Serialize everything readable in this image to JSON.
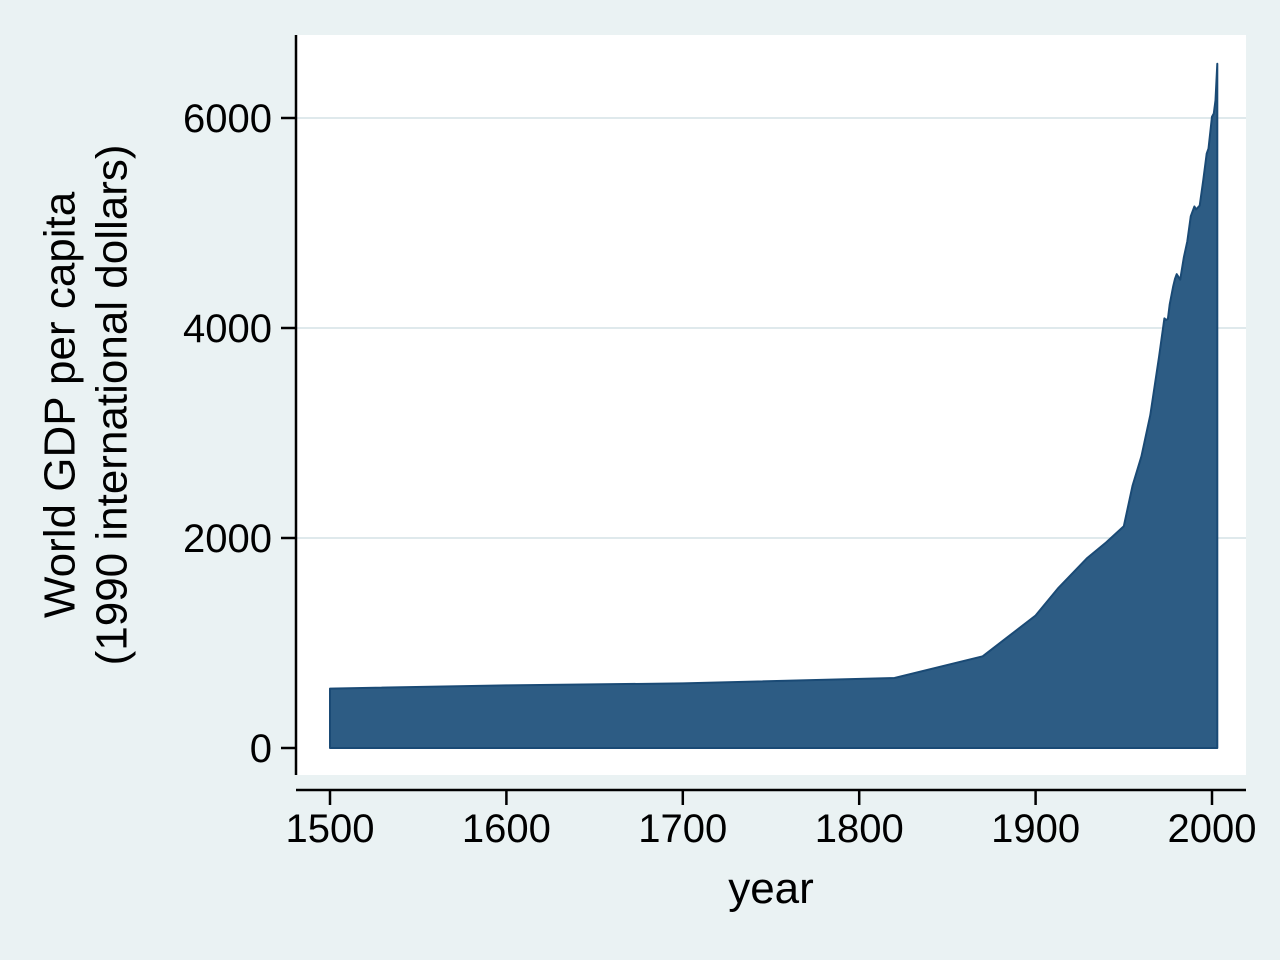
{
  "labels": {
    "y_line1": "World GDP per capita",
    "y_line2": "(1990 international dollars)",
    "x": "year"
  },
  "axes": {
    "x_ticks": [
      1500,
      1600,
      1700,
      1800,
      1900,
      2000
    ],
    "x_tick_labels": [
      "1500",
      "1600",
      "1700",
      "1800",
      "1900",
      "2000"
    ],
    "y_ticks": [
      0,
      2000,
      4000,
      6000
    ],
    "y_tick_labels": [
      "0",
      "2000",
      "4000",
      "6000"
    ]
  },
  "colors": {
    "background": "#eaf2f3",
    "plot_background": "#ffffff",
    "grid": "#dfe9ec",
    "area_fill": "#2d5c84",
    "area_stroke": "#1a4a75",
    "axis": "#000000",
    "text": "#000000"
  },
  "chart_data": {
    "type": "area",
    "title": "",
    "xlabel": "year",
    "ylabel": "World GDP per capita (1990 international dollars)",
    "xlim": [
      1500,
      2003
    ],
    "ylim": [
      0,
      6800
    ],
    "grid": true,
    "legend": "none",
    "x_ticks": [
      1500,
      1600,
      1700,
      1800,
      1900,
      2000
    ],
    "y_ticks": [
      0,
      2000,
      4000,
      6000
    ],
    "series": [
      {
        "name": "World GDP per capita (1990 international dollars)",
        "x": [
          1500,
          1600,
          1700,
          1820,
          1870,
          1900,
          1913,
          1929,
          1940,
          1950,
          1955,
          1960,
          1965,
          1970,
          1973,
          1974,
          1975,
          1976,
          1978,
          1979,
          1980,
          1982,
          1984,
          1986,
          1988,
          1990,
          1991,
          1993,
          1995,
          1997,
          1998,
          2000,
          2001,
          2002,
          2003
        ],
        "y": [
          566,
          596,
          615,
          667,
          873,
          1262,
          1526,
          1806,
          1958,
          2111,
          2500,
          2777,
          3170,
          3729,
          4091,
          4076,
          4087,
          4224,
          4397,
          4468,
          4512,
          4460,
          4670,
          4825,
          5065,
          5157,
          5130,
          5166,
          5404,
          5661,
          5709,
          6012,
          6043,
          6169,
          6516
        ]
      }
    ]
  }
}
